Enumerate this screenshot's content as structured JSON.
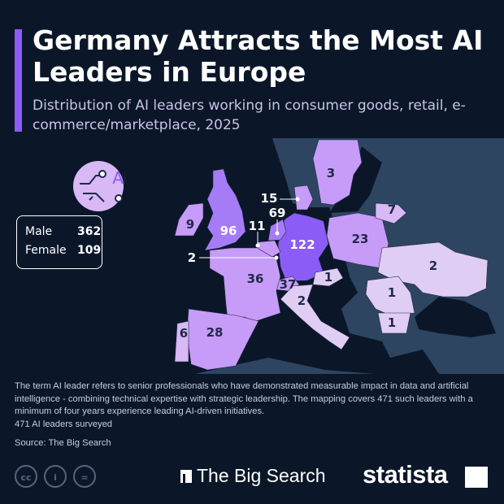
{
  "header": {
    "title": "Germany Attracts the Most AI Leaders in Europe",
    "subtitle": "Distribution of AI leaders working in consumer goods, retail, e-commerce/marketplace, 2025"
  },
  "colors": {
    "background": "#0b1729",
    "land": "#2d4561",
    "highest": "#8b5cf6",
    "high": "#a67cf6",
    "mid": "#c79cf9",
    "low": "#d8b8f5",
    "lowest": "#e0cdf3",
    "accent": "#8b5cf6"
  },
  "icon": {
    "name": "ai-chip-icon",
    "text": "AI"
  },
  "gender": {
    "male_label": "Male",
    "male_value": "362",
    "female_label": "Female",
    "female_value": "109"
  },
  "countries": [
    {
      "name": "Germany",
      "value": "122"
    },
    {
      "name": "United Kingdom",
      "value": "96"
    },
    {
      "name": "Netherlands",
      "value": "69"
    },
    {
      "name": "Switzerland",
      "value": "37"
    },
    {
      "name": "France",
      "value": "36"
    },
    {
      "name": "Spain",
      "value": "28"
    },
    {
      "name": "Poland",
      "value": "23"
    },
    {
      "name": "Denmark",
      "value": "15"
    },
    {
      "name": "Belgium",
      "value": "11"
    },
    {
      "name": "Ireland",
      "value": "9"
    },
    {
      "name": "Lithuania",
      "value": "7"
    },
    {
      "name": "Portugal",
      "value": "6"
    },
    {
      "name": "Sweden",
      "value": "3"
    },
    {
      "name": "Italy",
      "value": "2"
    },
    {
      "name": "Ukraine",
      "value": "2"
    },
    {
      "name": "Luxembourg",
      "value": "2"
    },
    {
      "name": "Austria",
      "value": "1"
    },
    {
      "name": "Romania",
      "value": "1"
    },
    {
      "name": "Bulgaria",
      "value": "1"
    }
  ],
  "footer": {
    "note": "The term AI leader refers to senior professionals who have demonstrated measurable impact in data and artificial intelligence - combining technical expertise with strategic leadership. The mapping covers 471 such leaders with a minimum of four years experience leading AI-driven initiatives.",
    "surveyed": "471 AI leaders surveyed",
    "source": "Source: The Big Search",
    "partner_logo": "The Big Search",
    "brand_logo": "statista",
    "license_icons": [
      "cc-icon",
      "by-icon",
      "nd-icon"
    ]
  }
}
